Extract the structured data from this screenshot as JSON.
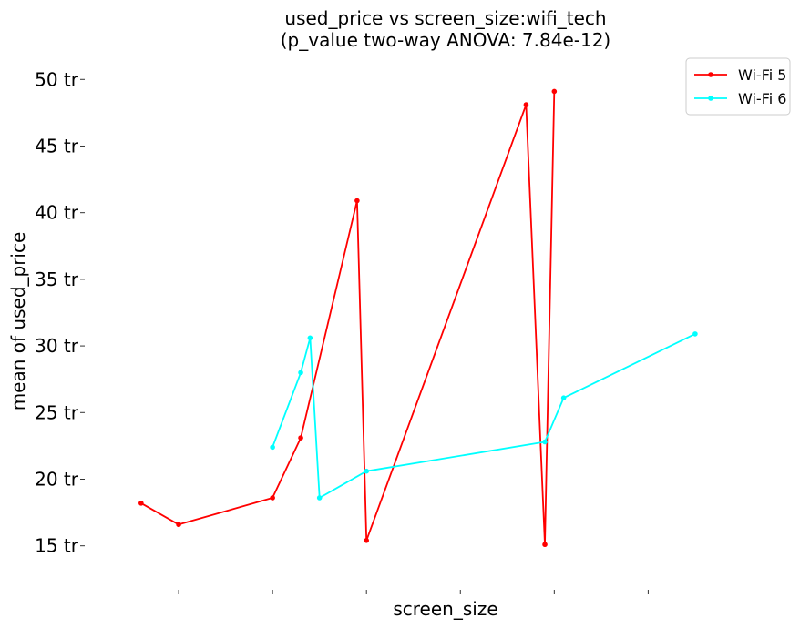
{
  "chart_data": {
    "type": "line",
    "title_line1": "used_price vs screen_size:wifi_tech",
    "title_line2": "(p_value two-way ANOVA: 7.84e-12)",
    "xlabel": "screen_size",
    "ylabel": "mean of used_price",
    "xlim": [
      0.0,
      15.0
    ],
    "ylim": [
      11.7,
      52.0
    ],
    "x_ticks": [
      2,
      4,
      6,
      8,
      10,
      12
    ],
    "y_ticks": [
      {
        "value": 15,
        "label": "15 tr"
      },
      {
        "value": 20,
        "label": "20 tr"
      },
      {
        "value": 25,
        "label": "25 tr"
      },
      {
        "value": 30,
        "label": "30 tr"
      },
      {
        "value": 35,
        "label": "35 tr"
      },
      {
        "value": 40,
        "label": "40 tr"
      },
      {
        "value": 45,
        "label": "45 tr"
      },
      {
        "value": 50,
        "label": "50 tr"
      }
    ],
    "grid": false,
    "legend_position": "top-right",
    "series": [
      {
        "name": "Wi-Fi 5",
        "color": "#ff0000",
        "points": [
          {
            "x": 1.2,
            "y": 18.2
          },
          {
            "x": 2.0,
            "y": 16.6
          },
          {
            "x": 4.0,
            "y": 18.6
          },
          {
            "x": 4.6,
            "y": 23.1
          },
          {
            "x": 5.8,
            "y": 40.9
          },
          {
            "x": 6.0,
            "y": 15.4
          },
          {
            "x": 9.4,
            "y": 48.1
          },
          {
            "x": 9.8,
            "y": 15.1
          },
          {
            "x": 10.0,
            "y": 49.1
          }
        ]
      },
      {
        "name": "Wi-Fi 6",
        "color": "#00ffff",
        "points": [
          {
            "x": 4.0,
            "y": 22.4
          },
          {
            "x": 4.6,
            "y": 28.0
          },
          {
            "x": 4.8,
            "y": 30.6
          },
          {
            "x": 5.0,
            "y": 18.6
          },
          {
            "x": 6.0,
            "y": 20.6
          },
          {
            "x": 9.8,
            "y": 22.8
          },
          {
            "x": 10.2,
            "y": 26.1
          },
          {
            "x": 13.0,
            "y": 30.9
          }
        ]
      }
    ]
  }
}
